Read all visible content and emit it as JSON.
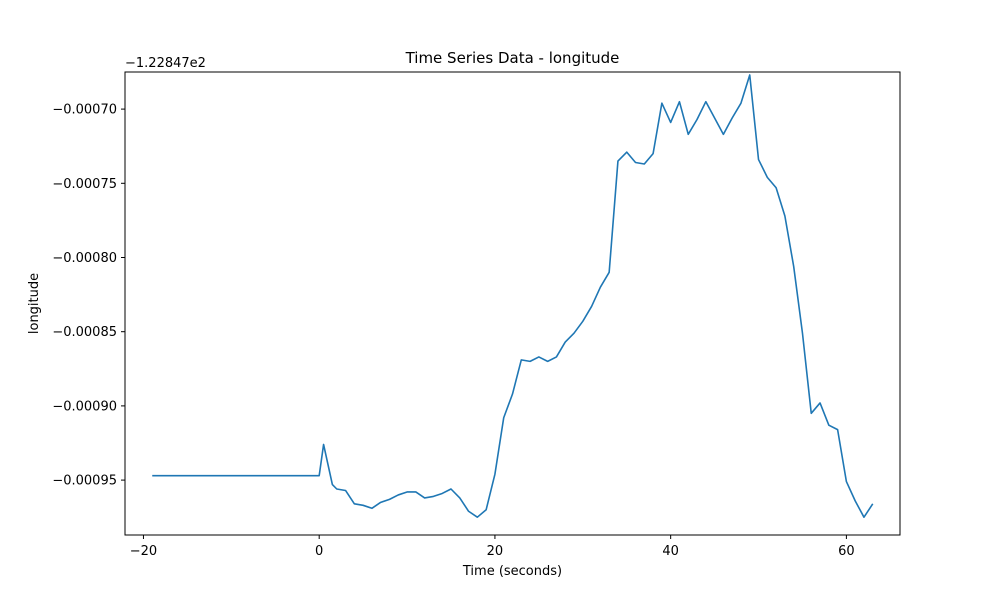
{
  "chart_data": {
    "type": "line",
    "title": "Time Series Data - longitude",
    "xlabel": "Time (seconds)",
    "ylabel": "longitude",
    "offset_label": "−1.22847e2",
    "xlim": [
      -22.1,
      66.1
    ],
    "ylim": [
      -0.000987,
      -0.000675
    ],
    "x_ticks": [
      -20,
      0,
      20,
      40,
      60
    ],
    "x_tick_labels": [
      "−20",
      "0",
      "20",
      "40",
      "60"
    ],
    "y_ticks": [
      -0.00095,
      -0.0009,
      -0.00085,
      -0.0008,
      -0.00075,
      -0.0007
    ],
    "y_tick_labels": [
      "−0.00095",
      "−0.00090",
      "−0.00085",
      "−0.00080",
      "−0.00075",
      "−0.00070"
    ],
    "grid": false,
    "line_color": "#1f77b4",
    "series": [
      {
        "x": [
          -19,
          -1,
          0,
          0.5,
          1.5,
          2,
          3,
          4,
          5,
          6,
          7,
          8,
          9,
          10,
          11,
          12,
          13,
          14,
          15,
          16,
          17,
          18,
          19,
          20,
          21,
          22,
          23,
          24,
          25,
          26,
          27,
          28,
          29,
          30,
          31,
          32,
          33,
          34,
          35,
          36,
          37,
          38,
          39,
          40,
          41,
          42,
          43,
          44,
          45,
          46,
          47,
          48,
          49,
          50,
          51,
          52,
          53,
          54,
          55,
          56,
          57,
          58,
          59,
          60,
          61,
          62,
          63
        ],
        "y": [
          -0.000947,
          -0.000947,
          -0.000947,
          -0.000926,
          -0.000953,
          -0.000956,
          -0.000957,
          -0.000966,
          -0.000967,
          -0.000969,
          -0.000965,
          -0.000963,
          -0.00096,
          -0.000958,
          -0.000958,
          -0.000962,
          -0.000961,
          -0.000959,
          -0.000956,
          -0.000962,
          -0.000971,
          -0.000975,
          -0.00097,
          -0.000946,
          -0.000908,
          -0.000892,
          -0.000869,
          -0.00087,
          -0.000867,
          -0.00087,
          -0.000867,
          -0.000857,
          -0.000851,
          -0.000843,
          -0.000833,
          -0.00082,
          -0.00081,
          -0.000735,
          -0.000729,
          -0.000736,
          -0.000737,
          -0.00073,
          -0.000696,
          -0.000709,
          -0.000695,
          -0.000717,
          -0.000707,
          -0.000695,
          -0.000706,
          -0.000717,
          -0.000706,
          -0.000696,
          -0.000677,
          -0.000734,
          -0.000746,
          -0.000753,
          -0.000772,
          -0.000806,
          -0.000851,
          -0.000905,
          -0.000898,
          -0.000913,
          -0.000916,
          -0.000951,
          -0.000964,
          -0.000975,
          -0.000966
        ]
      }
    ]
  }
}
